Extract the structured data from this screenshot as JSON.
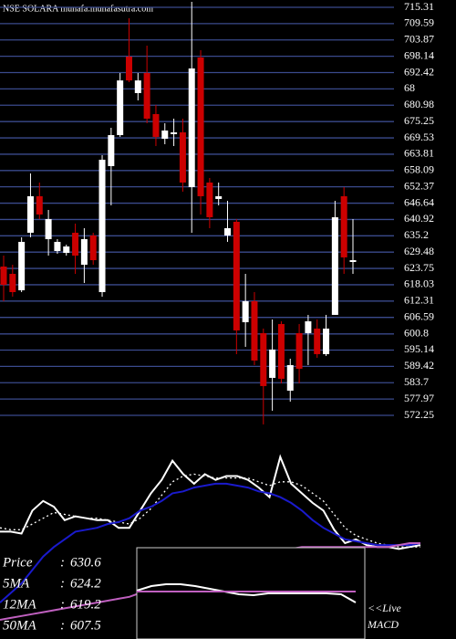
{
  "chart_data": [
    {
      "type": "candlestick",
      "title": "NSE SOLARA munafa.munafasutra.com",
      "up_color": "#ffffff",
      "down_color": "#cc0000",
      "grid": true,
      "grid_color": "#3a4a8c",
      "ylim": [
        567.45,
        717.87
      ],
      "yticks": [
        715.31,
        709.59,
        703.87,
        698.14,
        692.42,
        {
          "value": 686.7,
          "label": "68"
        },
        680.98,
        675.25,
        669.53,
        663.81,
        658.09,
        652.37,
        646.64,
        640.92,
        635.2,
        629.48,
        623.75,
        618.03,
        612.31,
        606.59,
        600.8,
        595.14,
        589.42,
        583.7,
        577.97,
        572.25
      ],
      "open": [
        624.42,
        621.86,
        616.11,
        636.27,
        649.07,
        634.03,
        629.86,
        629.22,
        636.27,
        625.06,
        635.31,
        615.46,
        659.63,
        670.51,
        698.03,
        685.23,
        692.27,
        677.87,
        669.23,
        670.83,
        671.47,
        652.27,
        697.71,
        653.87,
        648.11,
        635.31,
        640.11,
        604.91,
        612.27,
        601.07,
        585.39,
        604.27,
        580.91,
        601.07,
        601.07,
        602.67,
        593.71,
        607.47,
        649.07,
        626.02
      ],
      "high": [
        628.26,
        625.06,
        634.67,
        657.07,
        653.87,
        644.27,
        634.03,
        632.1,
        639.47,
        637.87,
        636.27,
        663.47,
        673.07,
        692.27,
        711.47,
        692.27,
        701.87,
        681.07,
        674.67,
        676.27,
        676.27,
        717.23,
        700.27,
        655.47,
        653.87,
        647.47,
        641.07,
        621.86,
        615.46,
        602.67,
        605.87,
        605.23,
        592.11,
        604.27,
        607.47,
        605.87,
        607.47,
        647.47,
        652.27,
        641.07
      ],
      "low": [
        612.27,
        613.87,
        615.46,
        634.67,
        641.07,
        628.26,
        628.9,
        628.26,
        621.86,
        618.66,
        625.06,
        613.87,
        645.87,
        669.87,
        689.07,
        682.67,
        674.67,
        666.67,
        667.31,
        666.67,
        650.67,
        636.27,
        642.67,
        637.87,
        645.87,
        633.07,
        593.71,
        596.27,
        589.87,
        569.07,
        573.87,
        583.47,
        577.07,
        583.47,
        589.87,
        592.43,
        593.07,
        607.47,
        621.86,
        621.86
      ],
      "close": [
        618.02,
        615.46,
        633.07,
        649.07,
        642.67,
        641.07,
        633.07,
        631.46,
        628.26,
        634.03,
        626.66,
        661.87,
        670.51,
        689.67,
        689.67,
        689.67,
        676.27,
        669.87,
        672.11,
        671.47,
        653.87,
        693.87,
        649.07,
        641.71,
        649.07,
        637.87,
        602.03,
        612.27,
        591.47,
        582.51,
        595.31,
        585.07,
        589.87,
        588.59,
        605.23,
        593.71,
        602.67,
        641.71,
        627.63,
        626.66
      ]
    },
    {
      "type": "line",
      "ylim": [
        0,
        100
      ],
      "legend_separator": ":",
      "series": [
        {
          "name": "Price",
          "legend_value": 630.6,
          "color": "#ffffff",
          "style": "solid",
          "values": [
            56,
            56,
            55,
            67,
            72,
            69,
            62,
            64,
            63,
            62,
            62,
            58,
            58,
            67,
            76,
            83,
            93,
            86,
            81,
            86,
            83,
            85,
            85,
            83,
            79,
            74,
            95,
            81,
            76,
            71,
            67,
            57,
            50,
            52,
            49,
            48,
            48,
            47,
            48,
            49
          ]
        },
        {
          "name": "5MA",
          "legend_value": 624.2,
          "color": "#ffffff",
          "style": "dotted",
          "values": [
            58,
            57,
            57,
            60,
            63,
            66,
            65,
            64,
            63,
            63,
            62,
            61,
            60,
            63,
            68,
            75,
            82,
            85,
            86,
            85,
            84,
            84,
            84,
            84,
            82,
            80,
            82,
            82,
            80,
            76,
            72,
            65,
            58,
            54,
            52,
            50,
            49,
            48,
            48,
            48
          ]
        },
        {
          "name": "12MA",
          "legend_value": 619.2,
          "color": "#1a1acc",
          "style": "solid",
          "values": [
            19,
            24,
            29,
            36,
            43,
            48,
            52,
            56,
            57,
            58,
            60,
            61,
            63,
            67,
            69,
            72,
            76,
            77,
            79,
            80,
            81,
            81,
            80,
            79,
            77,
            76,
            74,
            71,
            67,
            62,
            58,
            55,
            52,
            51,
            50,
            49,
            49,
            49,
            49,
            50
          ]
        },
        {
          "name": "50MA",
          "legend_value": 607.5,
          "color": "#c060c0",
          "style": "solid",
          "values": [
            10,
            11,
            12,
            13,
            14,
            15,
            16,
            17,
            18,
            19,
            20,
            21,
            22,
            24,
            26,
            28,
            30,
            32,
            34,
            36,
            38,
            40,
            42,
            44,
            46,
            47,
            47,
            47,
            48,
            48,
            48,
            48,
            48,
            48,
            48,
            48,
            48,
            49,
            50,
            50
          ]
        }
      ]
    },
    {
      "type": "line",
      "title": "MACD",
      "annotation": "<<Live",
      "ylim": [
        0,
        100
      ],
      "series": [
        {
          "color": "#ffffff",
          "values": [
            53,
            58,
            60,
            60,
            58,
            55,
            52,
            49,
            48,
            50,
            50,
            50,
            50,
            50,
            49,
            40
          ]
        },
        {
          "color": "#c060c0",
          "values": [
            52,
            52,
            52,
            52,
            52,
            52,
            52,
            52,
            52,
            52,
            52,
            52,
            52,
            52,
            52,
            52
          ]
        }
      ]
    }
  ]
}
